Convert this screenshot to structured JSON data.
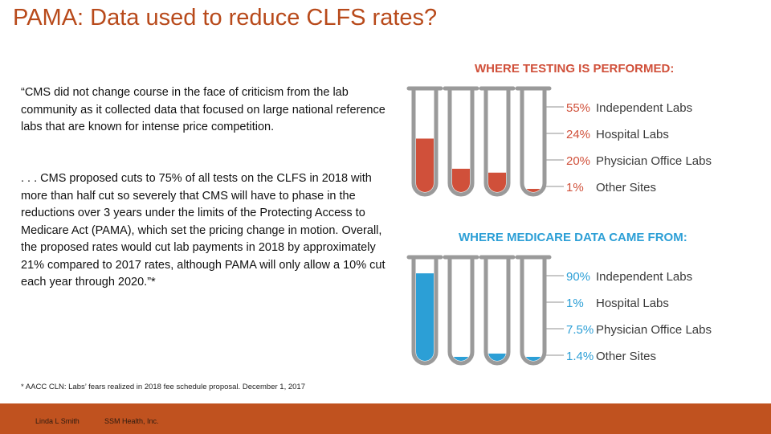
{
  "title": "PAMA: Data used to reduce CLFS rates?",
  "quote_p1": "“CMS did not change course in the face of criticism from the lab community as it collected data that focused on large national reference labs that are known for intense price competition.",
  "quote_p2": ". . . CMS proposed cuts to 75% of all tests on the CLFS in 2018 with more than half cut so severely that CMS will have to phase in the reductions over 3 years under the limits of the Protecting Access to Medicare Act (PAMA), which set the pricing change in motion. Overall, the proposed rates would cut lab payments in 2018 by approximately 21% compared to 2017 rates, although PAMA will only allow a 10% cut each year through 2020.”*",
  "footnote": "* AACC CLN:  Labs’ fears realized in 2018 fee schedule proposal. December 1, 2017",
  "footer": {
    "author": "Linda L Smith",
    "org": "SSM Health, Inc."
  },
  "colors": {
    "title": "#b84a1b",
    "testing": "#d0503a",
    "medicare": "#2c9fd6",
    "footer": "#c0521f"
  },
  "testing": {
    "heading": "WHERE TESTING IS PERFORMED:",
    "items": [
      {
        "pct_label": "55%",
        "pct": 55,
        "label": "Independent Labs"
      },
      {
        "pct_label": "24%",
        "pct": 24,
        "label": "Hospital Labs"
      },
      {
        "pct_label": "20%",
        "pct": 20,
        "label": "Physician Office Labs"
      },
      {
        "pct_label": "1%",
        "pct": 1,
        "label": "Other Sites"
      }
    ]
  },
  "medicare": {
    "heading": "WHERE MEDICARE DATA CAME FROM:",
    "items": [
      {
        "pct_label": "90%",
        "pct": 90,
        "label": "Independent Labs"
      },
      {
        "pct_label": "1%",
        "pct": 1,
        "label": "Hospital Labs"
      },
      {
        "pct_label": "7.5%",
        "pct": 7.5,
        "label": "Physician Office Labs"
      },
      {
        "pct_label": "1.4%",
        "pct": 1.4,
        "label": "Other Sites"
      }
    ]
  }
}
